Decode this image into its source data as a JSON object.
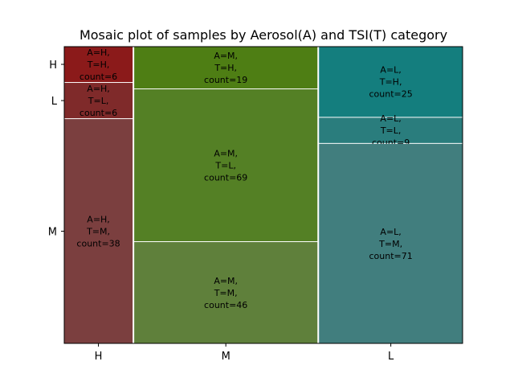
{
  "chart_data": {
    "type": "mosaic",
    "title": "Mosaic plot of samples by Aerosol(A) and TSI(T) category",
    "x_categories": [
      "H",
      "M",
      "L"
    ],
    "y_categories": [
      "H",
      "L",
      "M"
    ],
    "tiles": [
      {
        "column": "H",
        "row": "H",
        "label": [
          "A=H,",
          "T=H,",
          "count=6"
        ],
        "count": 6,
        "color": "#8b1a1a"
      },
      {
        "column": "H",
        "row": "L",
        "label": [
          "A=H,",
          "T=L,",
          "count=6"
        ],
        "count": 6,
        "color": "#7f2a2a"
      },
      {
        "column": "H",
        "row": "M",
        "label": [
          "A=H,",
          "T=M,",
          "count=38"
        ],
        "count": 38,
        "color": "#7b3f3f"
      },
      {
        "column": "M",
        "row": "H",
        "label": [
          "A=M,",
          "T=H,",
          "count=19"
        ],
        "count": 19,
        "color": "#4e7e14"
      },
      {
        "column": "M",
        "row": "L",
        "label": [
          "A=M,",
          "T=L,",
          "count=69"
        ],
        "count": 69,
        "color": "#548025"
      },
      {
        "column": "M",
        "row": "M",
        "label": [
          "A=M,",
          "T=M,",
          "count=46"
        ],
        "count": 46,
        "color": "#5f803b"
      },
      {
        "column": "L",
        "row": "H",
        "label": [
          "A=L,",
          "T=H,",
          "count=25"
        ],
        "count": 25,
        "color": "#147e7e"
      },
      {
        "column": "L",
        "row": "L",
        "label": [
          "A=L,",
          "T=L,",
          "count=9"
        ],
        "count": 9,
        "color": "#2a7d7d"
      },
      {
        "column": "L",
        "row": "M",
        "label": [
          "A=L,",
          "T=M,",
          "count=71"
        ],
        "count": 71,
        "color": "#417e7e"
      }
    ],
    "y_tick_rows": [
      "H",
      "L",
      "M"
    ],
    "y_tick_column": "H",
    "grid": false
  }
}
